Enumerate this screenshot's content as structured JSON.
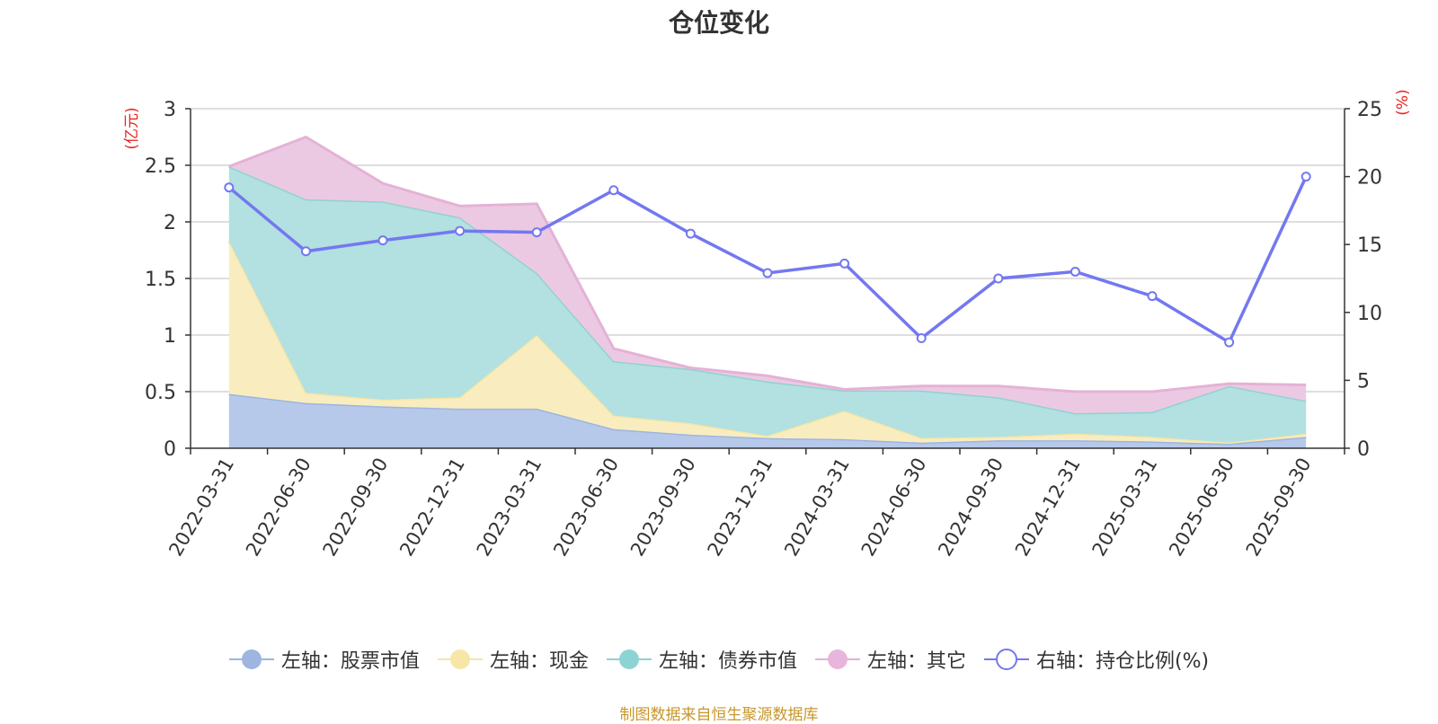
{
  "chart_data": {
    "type": "area",
    "title": "仓位变化",
    "categories": [
      "2022-03-31",
      "2022-06-30",
      "2022-09-30",
      "2022-12-31",
      "2023-03-31",
      "2023-06-30",
      "2023-09-30",
      "2023-12-31",
      "2024-03-31",
      "2024-06-30",
      "2024-09-30",
      "2024-12-31",
      "2025-03-31",
      "2025-06-30",
      "2025-09-30"
    ],
    "left_axis": {
      "unit": "(亿元)",
      "ylim": [
        0,
        3
      ],
      "ticks": [
        "0",
        "0.5",
        "1",
        "1.5",
        "2",
        "2.5",
        "3"
      ]
    },
    "right_axis": {
      "unit": "(%)",
      "ylim": [
        0,
        25
      ],
      "ticks": [
        "0",
        "5",
        "10",
        "15",
        "20",
        "25"
      ]
    },
    "stacked_series": [
      {
        "name": "左轴：股票市值",
        "color": "#9db5e0",
        "fill": "#b7c9ea",
        "values": [
          0.48,
          0.4,
          0.37,
          0.35,
          0.35,
          0.17,
          0.12,
          0.09,
          0.08,
          0.05,
          0.07,
          0.07,
          0.06,
          0.04,
          0.1
        ]
      },
      {
        "name": "左轴：现金",
        "color": "#f5e6a6",
        "fill": "#f9edc0",
        "values": [
          1.35,
          0.09,
          0.06,
          0.1,
          0.65,
          0.12,
          0.1,
          0.02,
          0.25,
          0.04,
          0.03,
          0.06,
          0.04,
          0.01,
          0.03
        ]
      },
      {
        "name": "左轴：债券市值",
        "color": "#8ed3d3",
        "fill": "#b3e0e0",
        "values": [
          0.66,
          1.71,
          1.75,
          1.59,
          0.55,
          0.48,
          0.48,
          0.48,
          0.18,
          0.42,
          0.35,
          0.18,
          0.22,
          0.5,
          0.29
        ]
      },
      {
        "name": "左轴：其它",
        "color": "#e4b2d6",
        "fill": "#ecc9e2",
        "values": [
          0.0,
          0.55,
          0.16,
          0.1,
          0.61,
          0.11,
          0.01,
          0.05,
          0.01,
          0.04,
          0.1,
          0.19,
          0.18,
          0.02,
          0.14
        ]
      }
    ],
    "line_series": {
      "name": "右轴：持仓比例(%)",
      "color": "#7378f0",
      "values": [
        19.2,
        14.5,
        15.3,
        16.0,
        15.9,
        19.0,
        15.8,
        12.9,
        13.6,
        8.1,
        12.5,
        13.0,
        11.2,
        7.8,
        20.0
      ]
    }
  },
  "source_note": "制图数据来自恒生聚源数据库"
}
